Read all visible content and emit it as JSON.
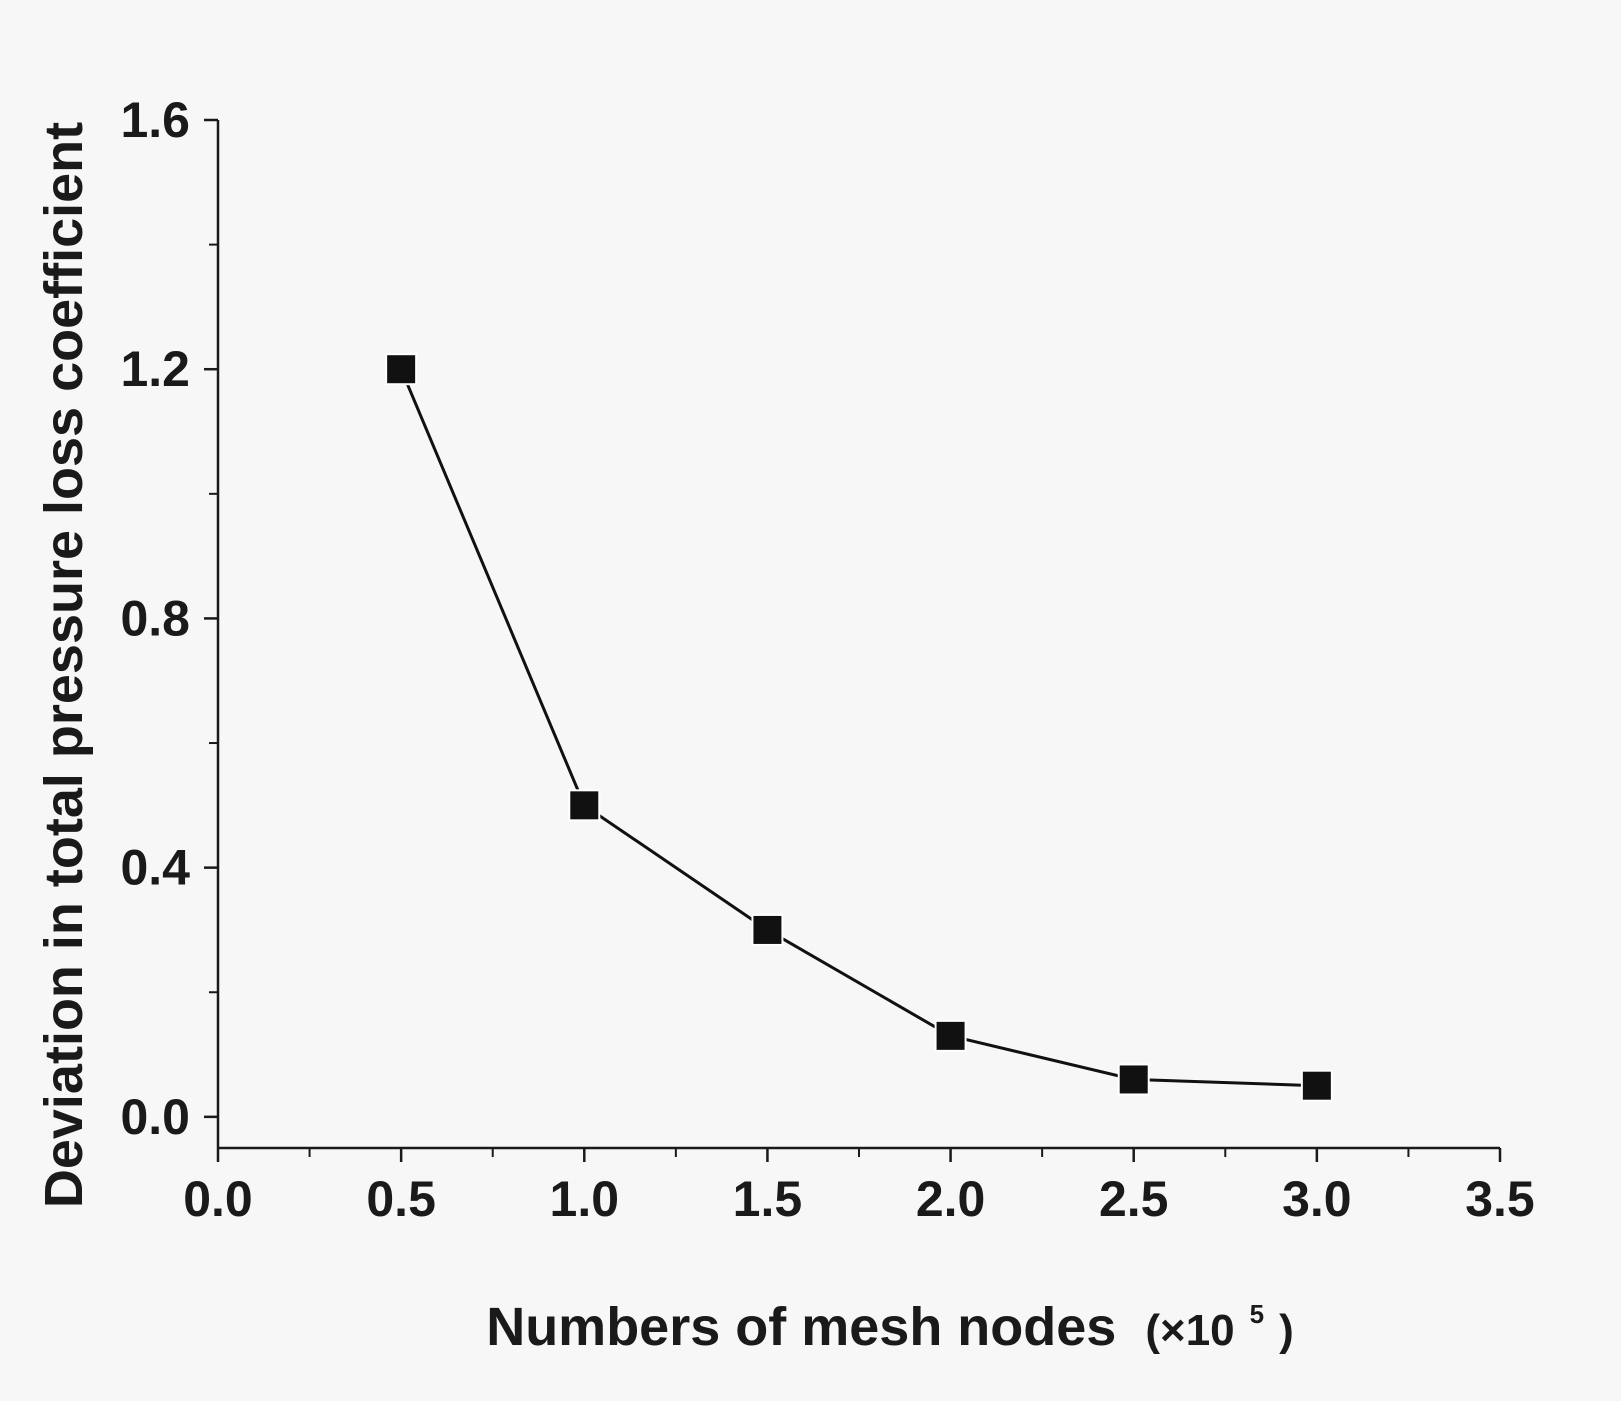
{
  "chart_data": {
    "type": "line",
    "title": "",
    "xlabel": "Numbers of mesh nodes",
    "xlabel_unit": {
      "prefix": "(×10",
      "exponent": "5",
      "suffix": ")"
    },
    "ylabel": "Deviation in total pressure loss coefficient",
    "xlim": [
      0.0,
      3.5
    ],
    "ylim": [
      -0.05,
      1.6
    ],
    "x_ticks": [
      "0.0",
      "0.5",
      "1.0",
      "1.5",
      "2.0",
      "2.5",
      "3.0",
      "3.5"
    ],
    "y_ticks": [
      "0.0",
      "0.4",
      "0.8",
      "1.2",
      "1.6"
    ],
    "grid": false,
    "marker": "square",
    "colors": {
      "line": "#111111",
      "marker": "#111111",
      "axis": "#1a1a1a"
    },
    "series": [
      {
        "x": [
          0.5,
          1.0,
          1.5,
          2.0,
          2.5,
          3.0
        ],
        "y": [
          1.2,
          0.5,
          0.3,
          0.13,
          0.06,
          0.05
        ]
      }
    ]
  }
}
